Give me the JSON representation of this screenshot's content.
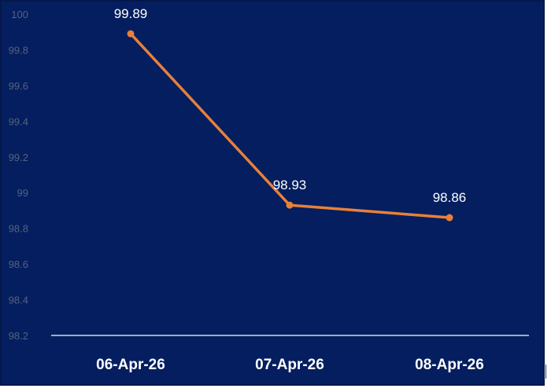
{
  "chart_data": {
    "type": "line",
    "title": "",
    "xlabel": "",
    "ylabel": "",
    "categories": [
      "06-Apr-26",
      "07-Apr-26",
      "08-Apr-26"
    ],
    "series": [
      {
        "values": [
          99.89,
          98.93,
          98.86
        ]
      }
    ],
    "data_labels": [
      "99.89",
      "98.93",
      "98.86"
    ],
    "ylim": [
      98.2,
      100
    ],
    "yticks": [
      98.2,
      98.4,
      98.6,
      98.8,
      99,
      99.2,
      99.4,
      99.6,
      99.8,
      100
    ],
    "ytick_labels": [
      "98.2",
      "98.4",
      "98.6",
      "98.8",
      "99",
      "99.2",
      "99.4",
      "99.6",
      "99.8",
      "100"
    ],
    "grid": false,
    "legend": "none",
    "colors": {
      "background": "#041e5f",
      "line": "#e8803a",
      "axis": "#ffffff",
      "ytick_text": "#55637f",
      "xtick_text": "#ffffff",
      "label_text": "#ffffff"
    }
  }
}
